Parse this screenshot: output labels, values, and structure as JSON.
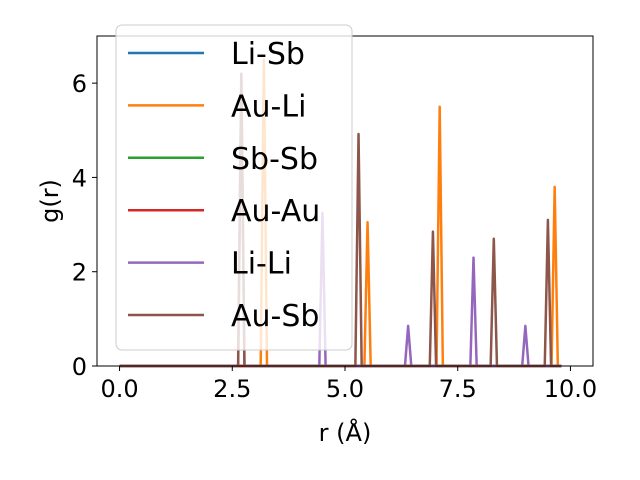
{
  "chart_data": {
    "type": "line",
    "xlabel": "r (Å)",
    "ylabel": "g(r)",
    "xlim": [
      -0.5,
      10.5
    ],
    "ylim": [
      0,
      7
    ],
    "xticks": [
      0.0,
      2.5,
      5.0,
      7.5,
      10.0
    ],
    "xtick_labels": [
      "0.0",
      "2.5",
      "5.0",
      "7.5",
      "10.0"
    ],
    "yticks": [
      0,
      2,
      4,
      6
    ],
    "ytick_labels": [
      "0",
      "2",
      "4",
      "6"
    ],
    "grid": false,
    "legend_position": "upper-left",
    "x_max": 9.8,
    "series": [
      {
        "name": "Li-Sb",
        "color": "#1f77b4",
        "peaks": []
      },
      {
        "name": "Au-Li",
        "color": "#ff7f0e",
        "peaks": [
          [
            3.2,
            6.5
          ],
          [
            5.5,
            3.05
          ],
          [
            7.1,
            5.5
          ],
          [
            9.65,
            3.8
          ]
        ]
      },
      {
        "name": "Sb-Sb",
        "color": "#2ca02c",
        "peaks": []
      },
      {
        "name": "Au-Au",
        "color": "#d62728",
        "peaks": []
      },
      {
        "name": "Li-Li",
        "color": "#9467bd",
        "peaks": [
          [
            2.7,
            6.2
          ],
          [
            4.5,
            3.25
          ],
          [
            6.4,
            0.85
          ],
          [
            7.85,
            2.3
          ],
          [
            9.0,
            0.85
          ]
        ]
      },
      {
        "name": "Au-Sb",
        "color": "#8c564b",
        "peaks": [
          [
            2.7,
            6.2
          ],
          [
            5.3,
            4.92
          ],
          [
            6.95,
            2.85
          ],
          [
            8.3,
            2.7
          ],
          [
            9.5,
            3.1
          ]
        ]
      }
    ]
  }
}
